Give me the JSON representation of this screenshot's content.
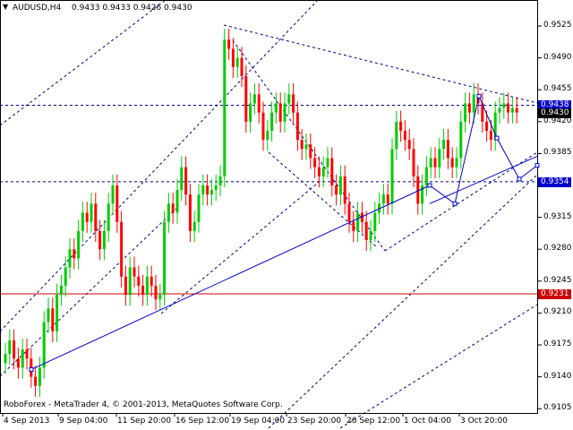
{
  "header": {
    "symbol_timeframe": "AUDUSD,H4",
    "ohlc": "0.9433 0.9433 0.9426 0.9430",
    "arrow": "▼"
  },
  "footer": {
    "copyright": "RoboForex - MetaTrader 4, © 2001-2013, MetaQuotes Software Corp."
  },
  "colors": {
    "bull": "#00cc00",
    "bear": "#ff0000",
    "grid": "#000080",
    "axis": "#000000",
    "level_blue": "#0000cc",
    "level_red": "#cc0000"
  },
  "chart_data": {
    "type": "candlestick",
    "y_ticks": [
      "0.9525",
      "0.9490",
      "0.9455",
      "0.9420",
      "0.9385",
      "0.9350",
      "0.9315",
      "0.9280",
      "0.9245",
      "0.9210",
      "0.9175",
      "0.9140",
      "0.9105"
    ],
    "x_ticks": [
      "4 Sep 2013",
      "9 Sep 04:00",
      "11 Sep 20:00",
      "16 Sep 12:00",
      "19 Sep 04:00",
      "23 Sep 20:00",
      "26 Sep 12:00",
      "1 Oct 04:00",
      "3 Oct 20:00"
    ],
    "price_tags": [
      {
        "value": "0.9438",
        "color": "#0000cc"
      },
      {
        "value": "0.9430",
        "color": "#000000"
      },
      {
        "value": "0.9354",
        "color": "#0000cc"
      },
      {
        "value": "0.9231",
        "color": "#cc0000"
      }
    ],
    "levels": [
      {
        "price": 0.9438,
        "style": "dashed",
        "color": "#000080"
      },
      {
        "price": 0.9354,
        "style": "dashed",
        "color": "#000080"
      },
      {
        "price": 0.9231,
        "style": "solid",
        "color": "#cc0000"
      }
    ],
    "ylim": [
      0.9102,
      0.953
    ],
    "forecast_path": [
      [
        0.937,
        0.9148
      ],
      [
        0.9325,
        0.935
      ],
      [
        0.9388,
        0.933
      ],
      [
        0.9437,
        0.9448
      ],
      [
        0.9416,
        0.9402
      ],
      [
        0.9368,
        0.9357
      ],
      [
        0.9382,
        0.9372
      ]
    ],
    "close_path": [
      0.9165,
      0.918,
      0.916,
      0.915,
      0.917,
      0.916,
      0.914,
      0.913,
      0.915,
      0.92,
      0.9215,
      0.919,
      0.923,
      0.924,
      0.926,
      0.928,
      0.927,
      0.93,
      0.932,
      0.931,
      0.933,
      0.93,
      0.928,
      0.93,
      0.933,
      0.935,
      0.931,
      0.925,
      0.923,
      0.926,
      0.925,
      0.924,
      0.923,
      0.925,
      0.924,
      0.9225,
      0.923,
      0.931,
      0.933,
      0.932,
      0.9345,
      0.937,
      0.934,
      0.93,
      0.931,
      0.934,
      0.935,
      0.934,
      0.9345,
      0.935,
      0.936,
      0.951,
      0.95,
      0.948,
      0.949,
      0.947,
      0.942,
      0.944,
      0.945,
      0.943,
      0.94,
      0.941,
      0.943,
      0.944,
      0.942,
      0.944,
      0.945,
      0.943,
      0.94,
      0.939,
      0.9395,
      0.938,
      0.937,
      0.936,
      0.937,
      0.938,
      0.935,
      0.934,
      0.936,
      0.933,
      0.931,
      0.93,
      0.932,
      0.931,
      0.929,
      0.93,
      0.932,
      0.933,
      0.934,
      0.933,
      0.939,
      0.942,
      0.941,
      0.94,
      0.939,
      0.936,
      0.933,
      0.935,
      0.937,
      0.938,
      0.937,
      0.939,
      0.94,
      0.938,
      0.937,
      0.938,
      0.942,
      0.944,
      0.943,
      0.945,
      0.944,
      0.942,
      0.941,
      0.94,
      0.943,
      0.9435,
      0.944,
      0.943,
      0.9435,
      0.943
    ]
  }
}
